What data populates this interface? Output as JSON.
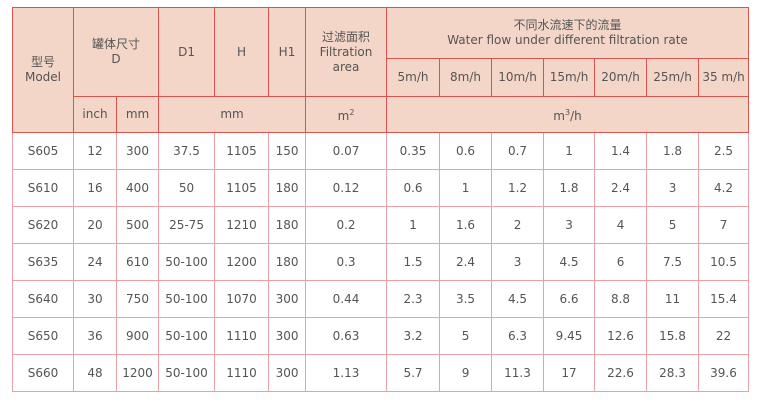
{
  "header": {
    "model_cn": "型号",
    "model_en": "Model",
    "tank_cn": "罐体尺寸",
    "tank_en": "D",
    "d1": "D1",
    "h": "H",
    "h1": "H1",
    "area_cn": "过滤面积",
    "area_en1": "Filtration",
    "area_en2": "area",
    "flow_cn": "不同水流速下的流量",
    "flow_en": "Water flow under different filtration rate",
    "rates": [
      "5m/h",
      "8m/h",
      "10m/h",
      "15m/h",
      "20m/h",
      "25m/h",
      "35 m/h"
    ],
    "unit_inch": "inch",
    "unit_mm": "mm",
    "unit_mm2": "mm",
    "unit_area": "m",
    "unit_area_sup": "2",
    "unit_flow_a": "m",
    "unit_flow_sup": "3",
    "unit_flow_b": "/h"
  },
  "rows": [
    [
      "S605",
      "12",
      "300",
      "37.5",
      "1105",
      "150",
      "0.07",
      "0.35",
      "0.6",
      "0.7",
      "1",
      "1.4",
      "1.8",
      "2.5"
    ],
    [
      "S610",
      "16",
      "400",
      "50",
      "1105",
      "180",
      "0.12",
      "0.6",
      "1",
      "1.2",
      "1.8",
      "2.4",
      "3",
      "4.2"
    ],
    [
      "S620",
      "20",
      "500",
      "25-75",
      "1210",
      "180",
      "0.2",
      "1",
      "1.6",
      "2",
      "3",
      "4",
      "5",
      "7"
    ],
    [
      "S635",
      "24",
      "610",
      "50-100",
      "1200",
      "180",
      "0.3",
      "1.5",
      "2.4",
      "3",
      "4.5",
      "6",
      "7.5",
      "10.5"
    ],
    [
      "S640",
      "30",
      "750",
      "50-100",
      "1070",
      "300",
      "0.44",
      "2.3",
      "3.5",
      "4.5",
      "6.6",
      "8.8",
      "11",
      "15.4"
    ],
    [
      "S650",
      "36",
      "900",
      "50-100",
      "1110",
      "300",
      "0.63",
      "3.2",
      "5",
      "6.3",
      "9.45",
      "12.6",
      "15.8",
      "22"
    ],
    [
      "S660",
      "48",
      "1200",
      "50-100",
      "1110",
      "300",
      "1.13",
      "5.7",
      "9",
      "11.3",
      "17",
      "22.6",
      "28.3",
      "39.6"
    ]
  ]
}
